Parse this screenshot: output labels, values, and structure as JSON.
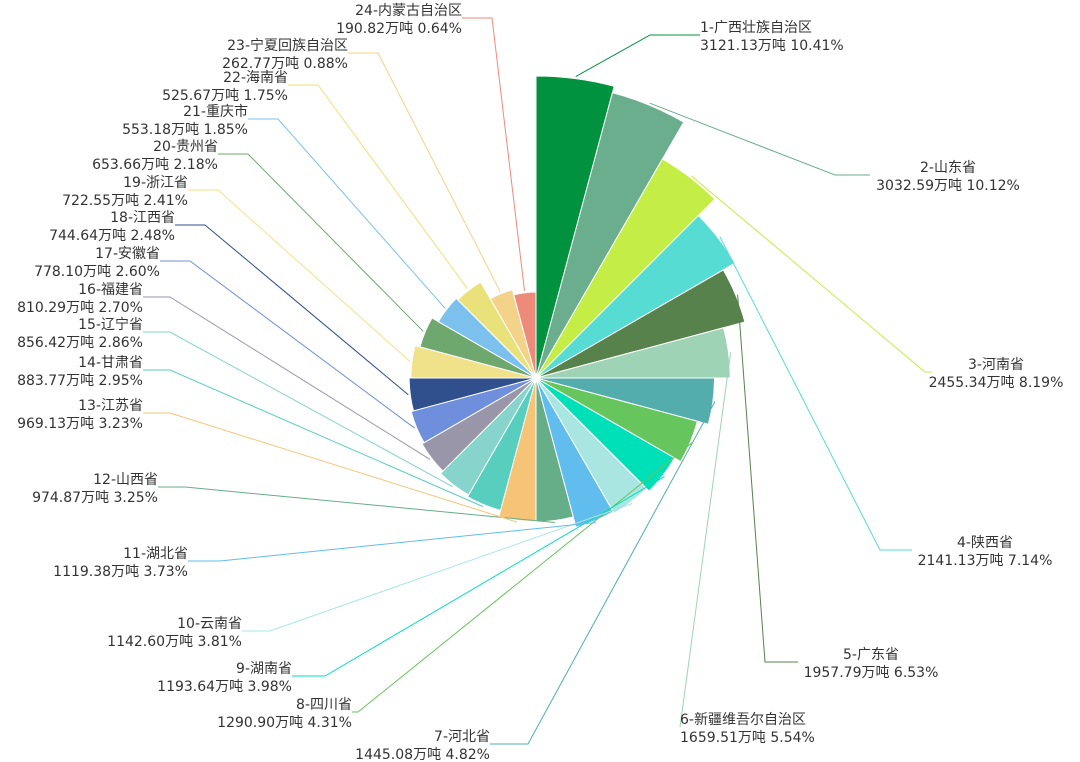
{
  "chart_data": {
    "type": "pie",
    "rose": true,
    "unit": "万吨",
    "slices": [
      {
        "label": "1-广西壮族自治区",
        "value": "3121.13",
        "percent": "10.41%",
        "color": "#00923f"
      },
      {
        "label": "2-山东省",
        "value": "3032.59",
        "percent": "10.12%",
        "color": "#6aae8d"
      },
      {
        "label": "3-河南省",
        "value": "2455.34",
        "percent": "8.19%",
        "color": "#c4ed45"
      },
      {
        "label": "4-陕西省",
        "value": "2141.13",
        "percent": "7.14%",
        "color": "#56dcd2",
        "highlight": true
      },
      {
        "label": "5-广东省",
        "value": "1957.79",
        "percent": "6.53%",
        "color": "#57824c"
      },
      {
        "label": "6-新疆维吾尔自治区",
        "value": "1659.51",
        "percent": "5.54%",
        "color": "#9fd3b5"
      },
      {
        "label": "7-河北省",
        "value": "1445.08",
        "percent": "4.82%",
        "color": "#52adac"
      },
      {
        "label": "8-四川省",
        "value": "1290.90",
        "percent": "4.31%",
        "color": "#66c55c"
      },
      {
        "label": "9-湖南省",
        "value": "1193.64",
        "percent": "3.98%",
        "color": "#00e0b8"
      },
      {
        "label": "10-云南省",
        "value": "1142.60",
        "percent": "3.81%",
        "color": "#a9e6e2"
      },
      {
        "label": "11-湖北省",
        "value": "1119.38",
        "percent": "3.73%",
        "color": "#60bdee"
      },
      {
        "label": "12-山西省",
        "value": "974.87",
        "percent": "3.25%",
        "color": "#66ae88"
      },
      {
        "label": "13-江苏省",
        "value": "969.13",
        "percent": "3.23%",
        "color": "#f6c477"
      },
      {
        "label": "14-甘肃省",
        "value": "883.77",
        "percent": "2.95%",
        "color": "#58cfbe"
      },
      {
        "label": "15-辽宁省",
        "value": "856.42",
        "percent": "2.86%",
        "color": "#86d4cc"
      },
      {
        "label": "16-福建省",
        "value": "810.29",
        "percent": "2.70%",
        "color": "#9896a8"
      },
      {
        "label": "17-安徽省",
        "value": "778.10",
        "percent": "2.60%",
        "color": "#6f8fdc"
      },
      {
        "label": "18-江西省",
        "value": "744.64",
        "percent": "2.48%",
        "color": "#2f4f8d"
      },
      {
        "label": "19-浙江省",
        "value": "722.55",
        "percent": "2.41%",
        "color": "#f0e28a"
      },
      {
        "label": "20-贵州省",
        "value": "653.66",
        "percent": "2.18%",
        "color": "#6fa86f"
      },
      {
        "label": "21-重庆市",
        "value": "553.18",
        "percent": "1.85%",
        "color": "#7cc0ee"
      },
      {
        "label": "22-海南省",
        "value": "525.67",
        "percent": "1.75%",
        "color": "#e9e27a"
      },
      {
        "label": "23-宁夏回族自治区",
        "value": "262.77",
        "percent": "0.88%",
        "color": "#f3d28a"
      },
      {
        "label": "24-内蒙古自治区",
        "value": "190.82",
        "percent": "0.64%",
        "color": "#ee8a7a"
      }
    ]
  }
}
